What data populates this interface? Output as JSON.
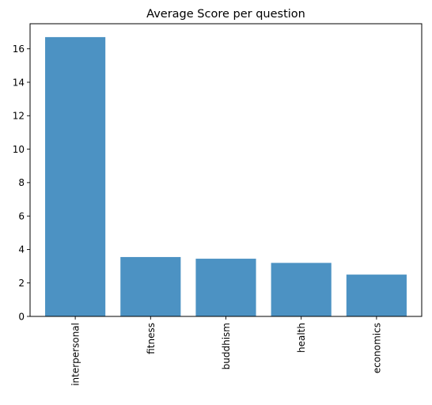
{
  "chart_data": {
    "type": "bar",
    "title": "Average Score per question",
    "xlabel": "",
    "ylabel": "",
    "categories": [
      "interpersonal",
      "fitness",
      "buddhism",
      "health",
      "economics"
    ],
    "values": [
      16.7,
      3.55,
      3.45,
      3.2,
      2.5
    ],
    "ylim": [
      0,
      17.5
    ],
    "yticks": [
      0,
      2,
      4,
      6,
      8,
      10,
      12,
      14,
      16
    ],
    "bar_color": "#4c92c3",
    "grid": false,
    "legend": "none",
    "x_tick_rotation": "vertical"
  }
}
